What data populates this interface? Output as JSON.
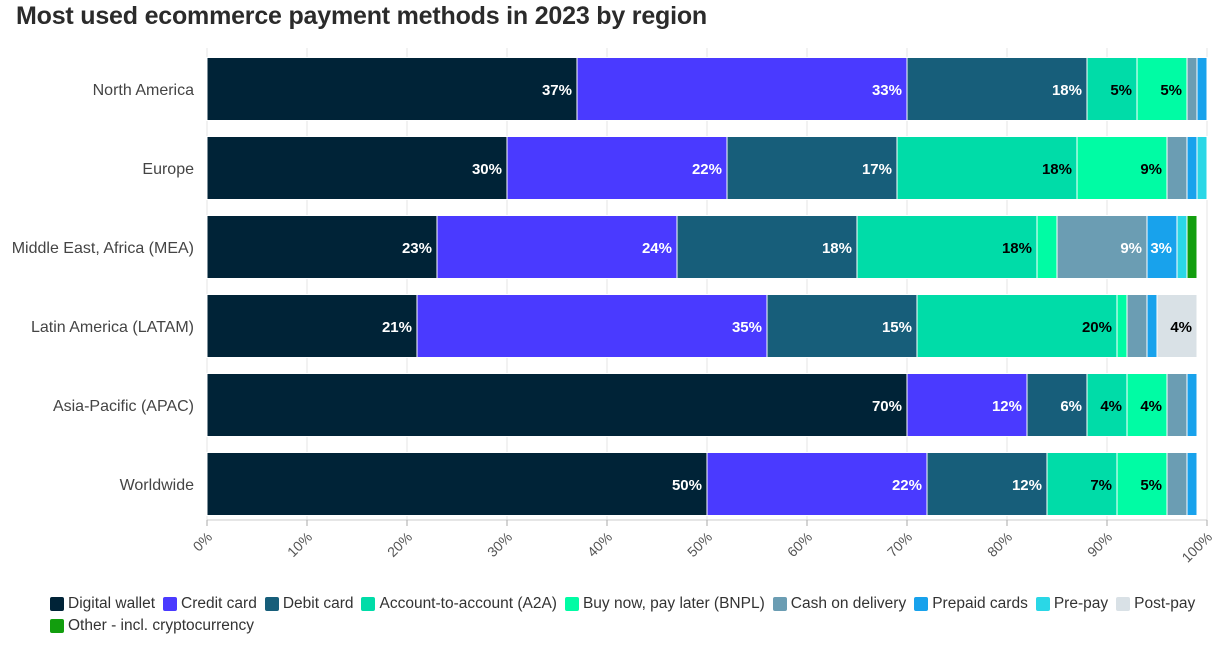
{
  "chart_data": {
    "type": "bar",
    "orientation": "horizontal",
    "stacked": true,
    "title": "Most used ecommerce payment methods in 2023 by region",
    "categories": [
      "North America",
      "Europe",
      "Middle East, Africa (MEA)",
      "Latin America (LATAM)",
      "Asia-Pacific (APAC)",
      "Worldwide"
    ],
    "xlim": [
      0,
      100
    ],
    "x_ticks": [
      "0%",
      "10%",
      "20%",
      "30%",
      "40%",
      "50%",
      "60%",
      "70%",
      "80%",
      "90%",
      "100%"
    ],
    "grid": true,
    "legend_position": "bottom",
    "series": [
      {
        "name": "Digital wallet",
        "color": "#002337",
        "label_color": "#ffffff",
        "values": [
          37,
          30,
          23,
          21,
          70,
          50
        ],
        "labels": [
          "37%",
          "30%",
          "23%",
          "21%",
          "70%",
          "50%"
        ]
      },
      {
        "name": "Credit card",
        "color": "#4a3aff",
        "label_color": "#ffffff",
        "values": [
          33,
          22,
          24,
          35,
          12,
          22
        ],
        "labels": [
          "33%",
          "22%",
          "24%",
          "35%",
          "12%",
          "22%"
        ]
      },
      {
        "name": "Debit card",
        "color": "#175e7a",
        "label_color": "#ffffff",
        "values": [
          18,
          17,
          18,
          15,
          6,
          12
        ],
        "labels": [
          "18%",
          "17%",
          "18%",
          "15%",
          "6%",
          "12%"
        ]
      },
      {
        "name": "Account-to-account (A2A)",
        "color": "#00dca8",
        "label_color": "#000000",
        "values": [
          5,
          18,
          18,
          20,
          4,
          7
        ],
        "labels": [
          "5%",
          "18%",
          "18%",
          "20%",
          "4%",
          "7%"
        ]
      },
      {
        "name": "Buy now, pay later (BNPL)",
        "color": "#00fca4",
        "label_color": "#000000",
        "values": [
          5,
          9,
          2,
          1,
          4,
          5
        ],
        "labels": [
          "5%",
          "9%",
          "",
          "",
          "4%",
          "5%"
        ]
      },
      {
        "name": "Cash on delivery",
        "color": "#6b9db3",
        "label_color": "#ffffff",
        "values": [
          1,
          2,
          9,
          2,
          2,
          2
        ],
        "labels": [
          "",
          "",
          "9%",
          "",
          "",
          ""
        ]
      },
      {
        "name": "Prepaid cards",
        "color": "#18a2ec",
        "label_color": "#ffffff",
        "values": [
          1,
          1,
          3,
          1,
          1,
          1
        ],
        "labels": [
          "",
          "",
          "3%",
          "",
          "",
          ""
        ]
      },
      {
        "name": "Pre-pay",
        "color": "#2ad7e6",
        "label_color": "#000000",
        "values": [
          0,
          1,
          1,
          0,
          0,
          0
        ],
        "labels": [
          "",
          "",
          "",
          "",
          "",
          ""
        ]
      },
      {
        "name": "Post-pay",
        "color": "#d9e1e6",
        "label_color": "#000000",
        "values": [
          0,
          0,
          0,
          4,
          0,
          0
        ],
        "labels": [
          "",
          "",
          "",
          "4%",
          "",
          ""
        ]
      },
      {
        "name": "Other - incl. cryptocurrency",
        "color": "#129e0e",
        "label_color": "#ffffff",
        "values": [
          0,
          0,
          1,
          0,
          0,
          0
        ],
        "labels": [
          "",
          "",
          "",
          "",
          "",
          ""
        ]
      }
    ]
  }
}
